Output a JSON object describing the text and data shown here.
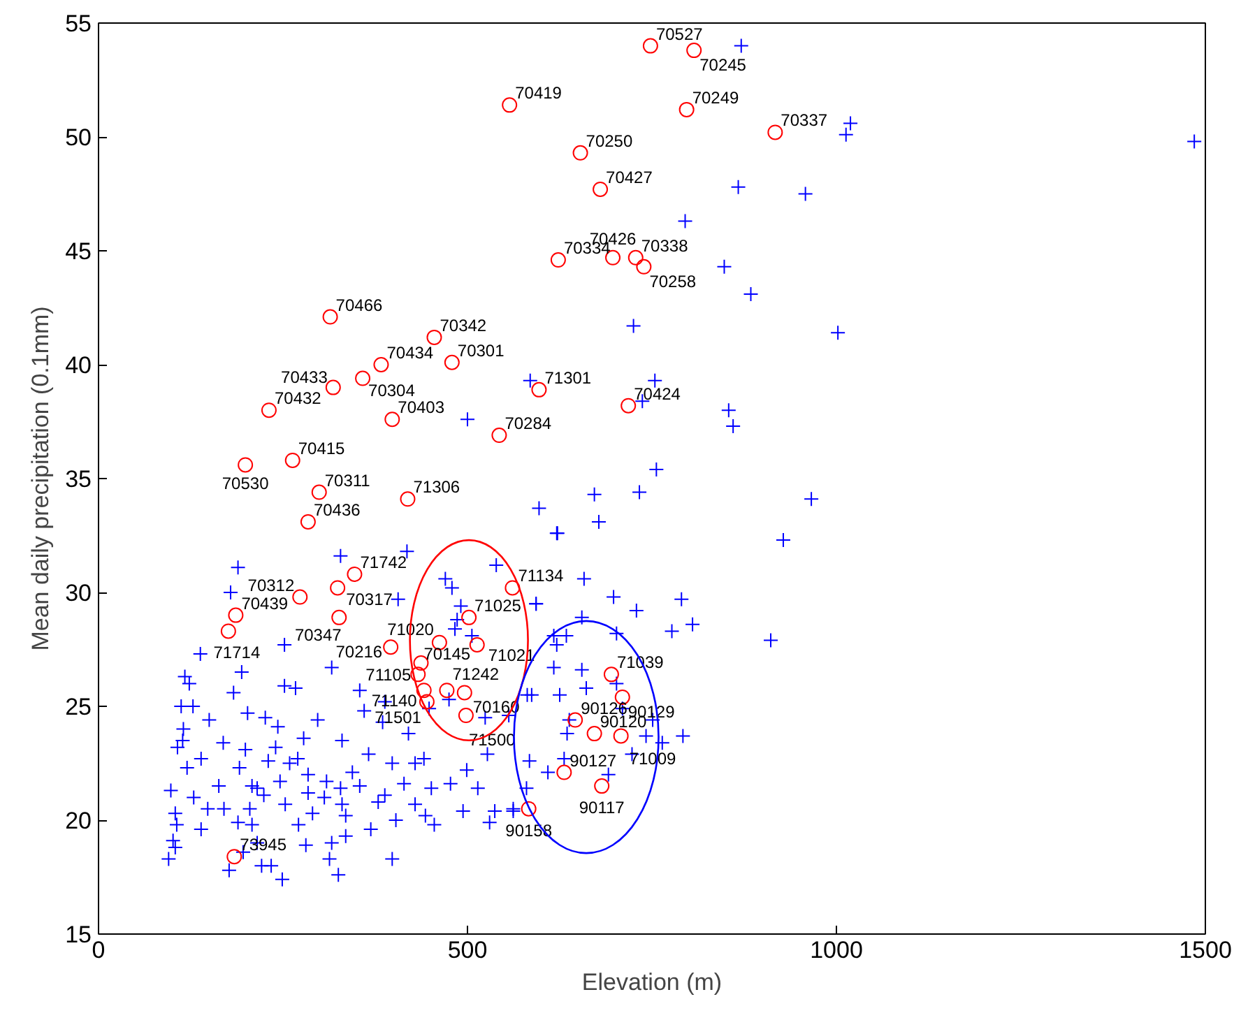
{
  "chart_data": {
    "type": "scatter",
    "xlabel": "Elevation (m)",
    "ylabel": "Mean daily precipitation (0.1mm)",
    "xlim": [
      0,
      1500
    ],
    "ylim": [
      15,
      55
    ],
    "xticks": [
      0,
      500,
      1000,
      1500
    ],
    "yticks": [
      15,
      20,
      25,
      30,
      35,
      40,
      45,
      50,
      55
    ],
    "grid": false,
    "series": [
      {
        "marker": "cross",
        "color": "#0000ff",
        "x": [
          418,
          328,
          189,
          179,
          470,
          479,
          539,
          593,
          491,
          486,
          483,
          506,
          406,
          252,
          138,
          194,
          316,
          252,
          267,
          183,
          117,
          123,
          112,
          128,
          150,
          202,
          226,
          297,
          243,
          115,
          114,
          107,
          169,
          199,
          240,
          278,
          330,
          270,
          139,
          120,
          191,
          230,
          259,
          284,
          309,
          344,
          366,
          398,
          429,
          441,
          499,
          527,
          354,
          360,
          385,
          420,
          388,
          475,
          448,
          524,
          556,
          581,
          163,
          208,
          224,
          246,
          284,
          328,
          354,
          388,
          414,
          451,
          477,
          514,
          98,
          129,
          148,
          170,
          205,
          253,
          306,
          330,
          379,
          429,
          443,
          494,
          537,
          562,
          104,
          106,
          139,
          189,
          208,
          271,
          290,
          335,
          369,
          403,
          455,
          530,
          101,
          104,
          95,
          177,
          221,
          234,
          249,
          281,
          316,
          335,
          313,
          325,
          398,
          215,
          196,
          215,
          622,
          658,
          593,
          698,
          790,
          729,
          655,
          702,
          777,
          805,
          617,
          634,
          621,
          617,
          655,
          661,
          702,
          625,
          587,
          638,
          635,
          710,
          751,
          742,
          764,
          792,
          723,
          691,
          631,
          609,
          584,
          580,
          562,
          871,
          1019,
          1013,
          1485,
          867,
          958,
          795,
          848,
          884,
          725,
          1002,
          585,
          754,
          737,
          500,
          854,
          860,
          966,
          756,
          672,
          733,
          597,
          678,
          621,
          928,
          911
        ],
        "values": [
          31.8,
          31.6,
          31.1,
          30.0,
          30.6,
          30.2,
          31.2,
          29.5,
          29.4,
          28.8,
          28.4,
          28.1,
          29.7,
          27.7,
          27.3,
          26.5,
          26.7,
          25.9,
          25.8,
          25.6,
          26.3,
          26.0,
          25.0,
          25.0,
          24.4,
          24.7,
          24.5,
          24.4,
          24.1,
          24.0,
          23.5,
          23.2,
          23.4,
          23.1,
          23.2,
          23.6,
          23.5,
          22.7,
          22.7,
          22.3,
          22.3,
          22.6,
          22.5,
          22.0,
          21.7,
          22.1,
          22.9,
          22.5,
          22.5,
          22.7,
          22.2,
          22.9,
          25.7,
          24.8,
          24.3,
          23.8,
          25.2,
          25.3,
          24.9,
          24.5,
          24.6,
          25.5,
          21.5,
          21.5,
          21.1,
          21.7,
          21.2,
          21.4,
          21.5,
          21.1,
          21.6,
          21.4,
          21.6,
          21.4,
          21.3,
          21.0,
          20.5,
          20.5,
          20.5,
          20.7,
          21.0,
          20.7,
          20.8,
          20.7,
          20.2,
          20.4,
          20.4,
          20.4,
          20.3,
          19.8,
          19.6,
          19.9,
          19.8,
          19.8,
          20.3,
          20.2,
          19.6,
          20.0,
          19.8,
          19.9,
          19.1,
          18.8,
          18.3,
          17.8,
          18.0,
          18.0,
          17.4,
          18.9,
          19.0,
          19.3,
          18.3,
          17.6,
          18.3,
          19.0,
          18.6,
          21.4,
          32.6,
          30.6,
          29.5,
          29.8,
          29.7,
          29.2,
          28.9,
          28.2,
          28.3,
          28.6,
          28.1,
          28.1,
          27.7,
          26.7,
          26.6,
          25.8,
          26.0,
          25.5,
          25.5,
          24.4,
          23.8,
          24.9,
          24.4,
          23.7,
          23.4,
          23.7,
          22.9,
          22.0,
          22.7,
          22.1,
          22.6,
          21.4,
          20.5,
          54.0,
          50.6,
          50.1,
          49.8,
          47.8,
          47.5,
          46.3,
          44.3,
          43.1,
          41.7,
          41.4,
          39.3,
          39.3,
          38.4,
          37.6,
          38.0,
          37.3,
          34.1,
          35.4,
          34.3,
          34.4,
          33.7,
          33.1,
          32.6,
          32.3,
          27.9
        ]
      },
      {
        "marker": "circle",
        "color": "#ff0000",
        "x": [
          748,
          807,
          557,
          797,
          917,
          653,
          680,
          623,
          697,
          728,
          739,
          597,
          718,
          543,
          314,
          455,
          383,
          479,
          318,
          358,
          231,
          398,
          263,
          199,
          299,
          419,
          284,
          347,
          273,
          324,
          186,
          176,
          326,
          396,
          561,
          502,
          462,
          513,
          437,
          433,
          441,
          472,
          496,
          445,
          498,
          695,
          710,
          646,
          672,
          708,
          631,
          682,
          583,
          184
        ],
        "values": [
          54.0,
          53.8,
          51.4,
          51.2,
          50.2,
          49.3,
          47.7,
          44.6,
          44.7,
          44.7,
          44.3,
          38.9,
          38.2,
          36.9,
          42.1,
          41.2,
          40.0,
          40.1,
          39.0,
          39.4,
          38.0,
          37.6,
          35.8,
          35.6,
          34.4,
          34.1,
          33.1,
          30.8,
          29.8,
          30.2,
          29.0,
          28.3,
          28.9,
          27.6,
          30.2,
          28.9,
          27.8,
          27.7,
          26.9,
          26.4,
          25.7,
          25.7,
          25.6,
          25.2,
          24.6,
          26.4,
          25.4,
          24.4,
          23.8,
          23.7,
          22.1,
          21.5,
          20.5,
          18.4
        ]
      }
    ],
    "annotations": [
      {
        "text": "70527",
        "x": 748,
        "y": 54.0
      },
      {
        "text": "70245",
        "x": 807,
        "y": 53.8
      },
      {
        "text": "70419",
        "x": 557,
        "y": 51.4
      },
      {
        "text": "70249",
        "x": 797,
        "y": 51.2
      },
      {
        "text": "70337",
        "x": 917,
        "y": 50.2
      },
      {
        "text": "70250",
        "x": 653,
        "y": 49.3
      },
      {
        "text": "70427",
        "x": 680,
        "y": 47.7
      },
      {
        "text": "70334",
        "x": 623,
        "y": 44.6
      },
      {
        "text": "70426",
        "x": 697,
        "y": 44.7
      },
      {
        "text": "70338",
        "x": 728,
        "y": 44.7
      },
      {
        "text": "70258",
        "x": 739,
        "y": 44.3
      },
      {
        "text": "71301",
        "x": 597,
        "y": 38.9
      },
      {
        "text": "70424",
        "x": 718,
        "y": 38.2
      },
      {
        "text": "70284",
        "x": 543,
        "y": 36.9
      },
      {
        "text": "70466",
        "x": 314,
        "y": 42.1
      },
      {
        "text": "70342",
        "x": 455,
        "y": 41.2
      },
      {
        "text": "70434",
        "x": 383,
        "y": 40.0
      },
      {
        "text": "70301",
        "x": 479,
        "y": 40.1
      },
      {
        "text": "70433",
        "x": 318,
        "y": 39.0
      },
      {
        "text": "70304",
        "x": 358,
        "y": 39.4
      },
      {
        "text": "70432",
        "x": 231,
        "y": 38.0
      },
      {
        "text": "70403",
        "x": 398,
        "y": 37.6
      },
      {
        "text": "70415",
        "x": 263,
        "y": 35.8
      },
      {
        "text": "70530",
        "x": 199,
        "y": 35.6
      },
      {
        "text": "70311",
        "x": 299,
        "y": 34.4
      },
      {
        "text": "71306",
        "x": 419,
        "y": 34.1
      },
      {
        "text": "70436",
        "x": 284,
        "y": 33.1
      },
      {
        "text": "71742",
        "x": 347,
        "y": 30.8
      },
      {
        "text": "70312",
        "x": 273,
        "y": 29.8
      },
      {
        "text": "70317",
        "x": 324,
        "y": 30.2
      },
      {
        "text": "70439",
        "x": 186,
        "y": 29.0
      },
      {
        "text": "71714",
        "x": 176,
        "y": 28.3
      },
      {
        "text": "70347",
        "x": 326,
        "y": 28.9
      },
      {
        "text": "70216",
        "x": 396,
        "y": 27.6
      },
      {
        "text": "71134",
        "x": 561,
        "y": 30.2
      },
      {
        "text": "71025",
        "x": 502,
        "y": 28.9
      },
      {
        "text": "71020",
        "x": 462,
        "y": 27.8
      },
      {
        "text": "71021",
        "x": 513,
        "y": 27.7
      },
      {
        "text": "70145",
        "x": 437,
        "y": 26.9
      },
      {
        "text": "71105",
        "x": 433,
        "y": 26.4
      },
      {
        "text": "71140",
        "x": 441,
        "y": 25.7
      },
      {
        "text": "71242",
        "x": 472,
        "y": 25.7
      },
      {
        "text": "70160",
        "x": 496,
        "y": 25.6
      },
      {
        "text": "71501",
        "x": 445,
        "y": 25.2
      },
      {
        "text": "71500",
        "x": 498,
        "y": 24.6
      },
      {
        "text": "71039",
        "x": 695,
        "y": 26.4
      },
      {
        "text": "90129",
        "x": 710,
        "y": 25.4
      },
      {
        "text": "90126",
        "x": 646,
        "y": 24.4
      },
      {
        "text": "90120",
        "x": 672,
        "y": 23.8
      },
      {
        "text": "71009",
        "x": 708,
        "y": 23.7
      },
      {
        "text": "90127",
        "x": 631,
        "y": 22.1
      },
      {
        "text": "90117",
        "x": 682,
        "y": 21.5
      },
      {
        "text": "90158",
        "x": 583,
        "y": 20.5
      },
      {
        "text": "73945",
        "x": 184,
        "y": 18.4
      }
    ]
  }
}
